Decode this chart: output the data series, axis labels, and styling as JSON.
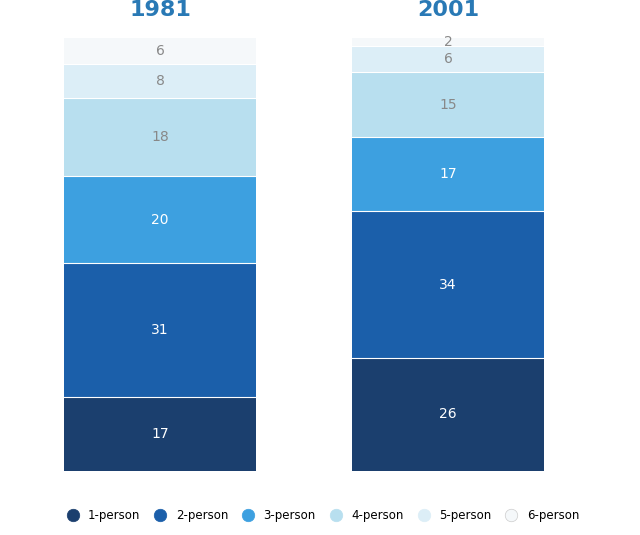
{
  "years": [
    "1981",
    "2001"
  ],
  "categories": [
    "1-person",
    "2-person",
    "3-person",
    "4-person",
    "5-person",
    "6-person"
  ],
  "values_1981": [
    17,
    31,
    20,
    18,
    8,
    6
  ],
  "values_2001": [
    26,
    34,
    17,
    15,
    6,
    2
  ],
  "colors": [
    "#1b3f6e",
    "#1b5faa",
    "#3da0e0",
    "#b8dfef",
    "#dceef7",
    "#f5f8fa"
  ],
  "title_1981": "1981",
  "title_2001": "2001",
  "title_color": "#2979b5",
  "background_color": "#ffffff",
  "legend_labels": [
    "1-person",
    "2-person",
    "3-person",
    "4-person",
    "5-person",
    "6-person"
  ],
  "legend_marker_edge": [
    "#1b3f6e",
    "#1b5faa",
    "#3da0e0",
    "#b8dfef",
    "#dceef7",
    "#cccccc"
  ]
}
